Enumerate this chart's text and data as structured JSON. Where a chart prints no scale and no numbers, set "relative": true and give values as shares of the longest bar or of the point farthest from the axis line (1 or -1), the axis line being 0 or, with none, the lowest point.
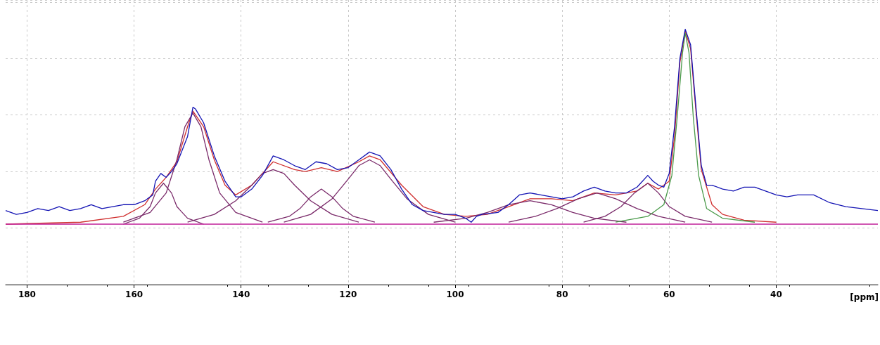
{
  "chart_data": {
    "type": "line",
    "relative": true,
    "xlabel": "[ppm]",
    "xlim": [
      184,
      21
    ],
    "xticks": [
      180,
      160,
      140,
      120,
      100,
      80,
      60,
      40
    ],
    "grid": true,
    "marker": "none",
    "line_style": "solid",
    "series": [
      {
        "color": "#1414b4",
        "x": [
          184,
          182,
          180,
          178,
          176,
          174,
          172,
          170,
          168,
          166,
          164,
          162,
          160,
          158,
          156.5,
          156,
          155,
          154,
          153,
          152,
          150,
          149,
          148.5,
          147,
          145,
          143,
          141,
          140,
          138,
          136,
          134,
          132,
          130,
          128,
          126,
          124,
          122,
          120,
          118,
          116,
          114,
          112,
          110,
          108,
          106,
          104,
          102,
          100,
          98,
          97,
          96,
          95,
          92,
          90,
          88,
          86,
          84,
          82,
          80,
          78,
          76,
          74,
          72,
          70,
          68,
          66,
          64,
          63,
          62,
          61,
          60,
          59,
          58,
          57,
          56,
          55,
          54,
          53,
          52,
          50,
          48,
          46,
          44,
          42,
          40,
          38,
          36,
          33,
          30,
          27,
          24,
          21
        ],
        "values": [
          0.07,
          0.05,
          0.06,
          0.08,
          0.07,
          0.09,
          0.07,
          0.08,
          0.1,
          0.08,
          0.09,
          0.1,
          0.1,
          0.12,
          0.15,
          0.22,
          0.26,
          0.24,
          0.27,
          0.31,
          0.45,
          0.6,
          0.59,
          0.52,
          0.35,
          0.22,
          0.14,
          0.14,
          0.18,
          0.25,
          0.35,
          0.33,
          0.3,
          0.28,
          0.32,
          0.31,
          0.28,
          0.29,
          0.33,
          0.37,
          0.35,
          0.28,
          0.18,
          0.1,
          0.07,
          0.06,
          0.05,
          0.05,
          0.03,
          0.01,
          0.04,
          0.05,
          0.06,
          0.1,
          0.15,
          0.16,
          0.15,
          0.14,
          0.13,
          0.14,
          0.17,
          0.19,
          0.17,
          0.16,
          0.16,
          0.19,
          0.25,
          0.22,
          0.2,
          0.19,
          0.26,
          0.5,
          0.85,
          1,
          0.92,
          0.6,
          0.3,
          0.2,
          0.2,
          0.18,
          0.17,
          0.19,
          0.19,
          0.17,
          0.15,
          0.14,
          0.15,
          0.15,
          0.11,
          0.09,
          0.08,
          0.07
        ]
      },
      {
        "color": "#d03030",
        "x": [
          184,
          170,
          162,
          158,
          156,
          154,
          152,
          150,
          149,
          147,
          145,
          143,
          141,
          138,
          134,
          130,
          128,
          125,
          122,
          118,
          116,
          114,
          110,
          106,
          102,
          98,
          94,
          90,
          86,
          82,
          78,
          74,
          70,
          66,
          64,
          62,
          60,
          59,
          58,
          57,
          56,
          55,
          54,
          52,
          50,
          46,
          40
        ],
        "values": [
          0,
          0.01,
          0.04,
          0.1,
          0.18,
          0.24,
          0.32,
          0.5,
          0.58,
          0.5,
          0.33,
          0.2,
          0.15,
          0.2,
          0.32,
          0.28,
          0.27,
          0.29,
          0.27,
          0.32,
          0.35,
          0.33,
          0.2,
          0.09,
          0.05,
          0.04,
          0.05,
          0.09,
          0.13,
          0.13,
          0.12,
          0.16,
          0.15,
          0.17,
          0.21,
          0.18,
          0.22,
          0.45,
          0.83,
          0.99,
          0.9,
          0.58,
          0.28,
          0.1,
          0.05,
          0.02,
          0.01
        ]
      },
      {
        "color": "#7a2a6a",
        "x": [
          162,
          159,
          157,
          156,
          154.5,
          153,
          152,
          150,
          147
        ],
        "values": [
          0,
          0.03,
          0.09,
          0.16,
          0.21,
          0.16,
          0.09,
          0.03,
          0
        ]
      },
      {
        "color": "#7a2a6a",
        "x": [
          162,
          157,
          154,
          152,
          150.5,
          149,
          147.5,
          146,
          144,
          141,
          136
        ],
        "values": [
          0.01,
          0.06,
          0.16,
          0.33,
          0.5,
          0.57,
          0.5,
          0.33,
          0.16,
          0.06,
          0.01
        ]
      },
      {
        "color": "#7a2a6a",
        "x": [
          150,
          145,
          141,
          138,
          136,
          134,
          132,
          130,
          127,
          123,
          118
        ],
        "values": [
          0.01,
          0.05,
          0.12,
          0.2,
          0.26,
          0.28,
          0.26,
          0.2,
          0.12,
          0.05,
          0.01
        ]
      },
      {
        "color": "#7a2a6a",
        "x": [
          135,
          131,
          129,
          127,
          125,
          123,
          121,
          119,
          115
        ],
        "values": [
          0.01,
          0.04,
          0.08,
          0.14,
          0.18,
          0.14,
          0.08,
          0.04,
          0.01
        ]
      },
      {
        "color": "#7a2a6a",
        "x": [
          132,
          127,
          123,
          120,
          118,
          116,
          114,
          112,
          109,
          105,
          100
        ],
        "values": [
          0.01,
          0.05,
          0.13,
          0.23,
          0.3,
          0.33,
          0.3,
          0.23,
          0.13,
          0.05,
          0.01
        ]
      },
      {
        "color": "#7a2a6a",
        "x": [
          104,
          98,
          94,
          90,
          86,
          82,
          78,
          74,
          68
        ],
        "values": [
          0.01,
          0.03,
          0.06,
          0.1,
          0.12,
          0.1,
          0.06,
          0.03,
          0.01
        ]
      },
      {
        "color": "#7a2a6a",
        "x": [
          90,
          85,
          81,
          77,
          73.5,
          70,
          66,
          62,
          57
        ],
        "values": [
          0.01,
          0.04,
          0.08,
          0.13,
          0.16,
          0.13,
          0.08,
          0.04,
          0.01
        ]
      },
      {
        "color": "#7a2a6a",
        "x": [
          76,
          72,
          69,
          66.5,
          64,
          62,
          60,
          57,
          52
        ],
        "values": [
          0.01,
          0.04,
          0.09,
          0.16,
          0.21,
          0.16,
          0.09,
          0.04,
          0.01
        ]
      },
      {
        "color": "#4a9a4a",
        "x": [
          70,
          64,
          61,
          59.5,
          58.5,
          57.5,
          57,
          56.3,
          55.5,
          54.5,
          53,
          50,
          44
        ],
        "values": [
          0.01,
          0.04,
          0.1,
          0.25,
          0.55,
          0.88,
          0.98,
          0.88,
          0.55,
          0.25,
          0.08,
          0.03,
          0.01
        ]
      },
      {
        "color": "#c0209a",
        "x": [
          184,
          21
        ],
        "values": [
          0,
          0
        ]
      }
    ]
  }
}
